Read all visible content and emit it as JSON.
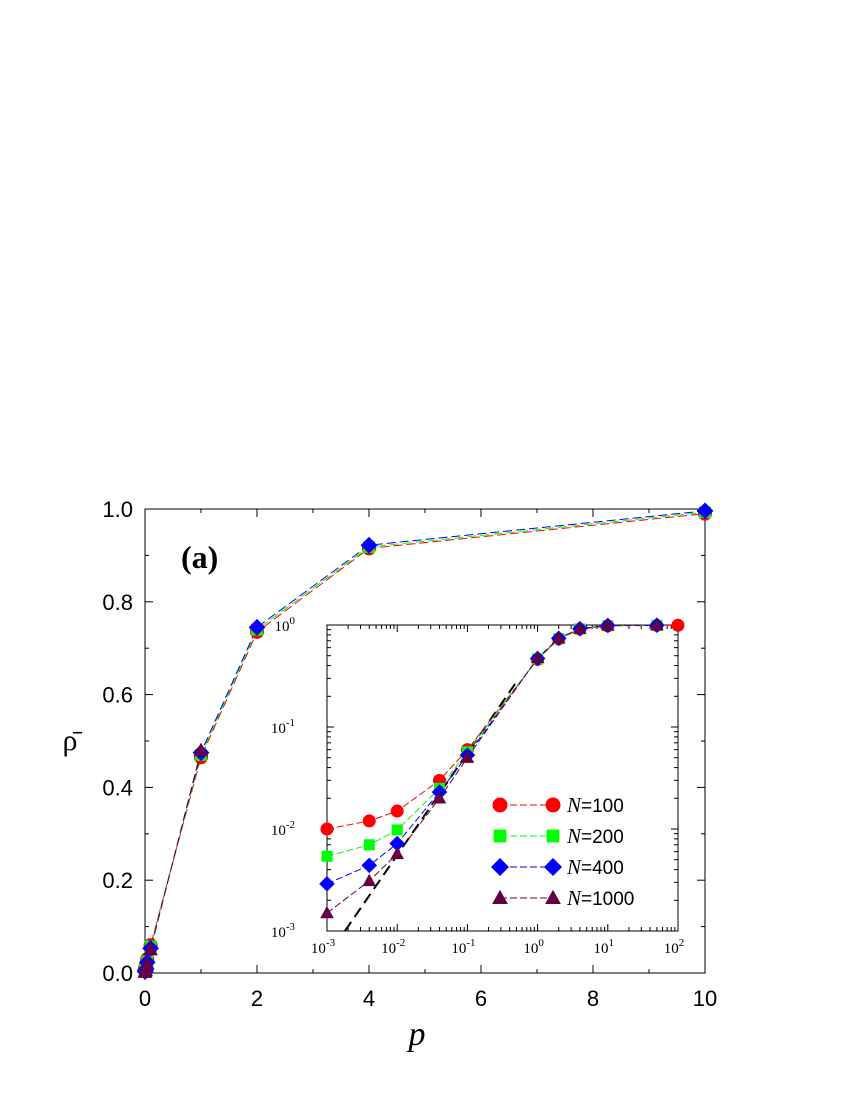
{
  "chart_data": [
    {
      "type": "line",
      "panel_label": "(a)",
      "xlabel": "p",
      "ylabel": "ρ̄",
      "xlim": [
        0,
        10
      ],
      "ylim": [
        0,
        1.0
      ],
      "x_ticks": [
        0,
        2,
        4,
        6,
        8,
        10
      ],
      "x_tick_labels": [
        "0",
        "2",
        "4",
        "6",
        "8",
        "10"
      ],
      "y_ticks": [
        0,
        0.2,
        0.4,
        0.6,
        0.8,
        1.0
      ],
      "y_tick_labels": [
        "0.0",
        "0.2",
        "0.4",
        "0.6",
        "0.8",
        "1.0"
      ],
      "grid": false,
      "series": [
        {
          "name": "N=100",
          "marker": "circle",
          "color": "#ff0000",
          "x": [
            0.001,
            0.004,
            0.01,
            0.04,
            0.1,
            1,
            2,
            4,
            10
          ],
          "y": [
            0.01,
            0.012,
            0.015,
            0.03,
            0.06,
            0.465,
            0.735,
            0.915,
            0.99
          ]
        },
        {
          "name": "N=200",
          "marker": "square",
          "color": "#00ff00",
          "x": [
            0.001,
            0.004,
            0.01,
            0.04,
            0.1,
            1,
            2,
            4,
            10
          ],
          "y": [
            0.0054,
            0.007,
            0.0098,
            0.025,
            0.057,
            0.47,
            0.74,
            0.918,
            0.993
          ]
        },
        {
          "name": "N=400",
          "marker": "diamond",
          "color": "#0000ff",
          "x": [
            0.001,
            0.004,
            0.01,
            0.04,
            0.1,
            1,
            2,
            4,
            10
          ],
          "y": [
            0.0029,
            0.0044,
            0.0072,
            0.023,
            0.053,
            0.475,
            0.745,
            0.922,
            0.996
          ]
        },
        {
          "name": "N=1000",
          "marker": "triangle",
          "color": "#660044",
          "x": [
            0.001,
            0.004,
            0.01,
            0.04,
            0.1,
            1
          ],
          "y": [
            0.0015,
            0.0031,
            0.0057,
            0.02,
            0.05,
            0.48
          ]
        }
      ]
    },
    {
      "type": "line",
      "inset": true,
      "x_scale": "log",
      "y_scale": "log",
      "xlim": [
        0.001,
        100
      ],
      "ylim": [
        0.001,
        1
      ],
      "x_tick_exponents": [
        "-3",
        "-2",
        "-1",
        "0",
        "1",
        "2"
      ],
      "y_tick_exponents": [
        "-3",
        "-2",
        "-1",
        "0"
      ],
      "tick_base": "10",
      "legend": "right",
      "reference_line": {
        "style": "dashed",
        "color": "#000000",
        "x": [
          0.0018,
          0.5
        ],
        "y": [
          0.001,
          0.277
        ]
      },
      "series": [
        {
          "name": "N=100",
          "marker": "circle",
          "color": "#ff0000",
          "x": [
            0.001,
            0.004,
            0.01,
            0.04,
            0.1,
            1,
            2,
            4,
            10,
            50,
            100
          ],
          "y": [
            0.01,
            0.012,
            0.015,
            0.03,
            0.06,
            0.46,
            0.73,
            0.91,
            0.98,
            0.99,
            0.995
          ]
        },
        {
          "name": "N=200",
          "marker": "square",
          "color": "#00ff00",
          "x": [
            0.001,
            0.004,
            0.01,
            0.04,
            0.1,
            1,
            2,
            4,
            10,
            50
          ],
          "y": [
            0.0054,
            0.007,
            0.0098,
            0.025,
            0.057,
            0.465,
            0.735,
            0.915,
            0.985,
            0.992
          ]
        },
        {
          "name": "N=400",
          "marker": "diamond",
          "color": "#0000ff",
          "x": [
            0.001,
            0.004,
            0.01,
            0.04,
            0.1,
            1,
            2,
            4,
            10,
            50
          ],
          "y": [
            0.0029,
            0.0044,
            0.0072,
            0.023,
            0.053,
            0.47,
            0.74,
            0.92,
            0.99,
            0.995
          ]
        },
        {
          "name": "N=1000",
          "marker": "triangle",
          "color": "#660044",
          "x": [
            0.001,
            0.004,
            0.01,
            0.04,
            0.1,
            1,
            2,
            4,
            10,
            50
          ],
          "y": [
            0.0015,
            0.0031,
            0.0057,
            0.02,
            0.05,
            0.475,
            0.74,
            0.92,
            0.99,
            0.995
          ]
        }
      ]
    }
  ]
}
